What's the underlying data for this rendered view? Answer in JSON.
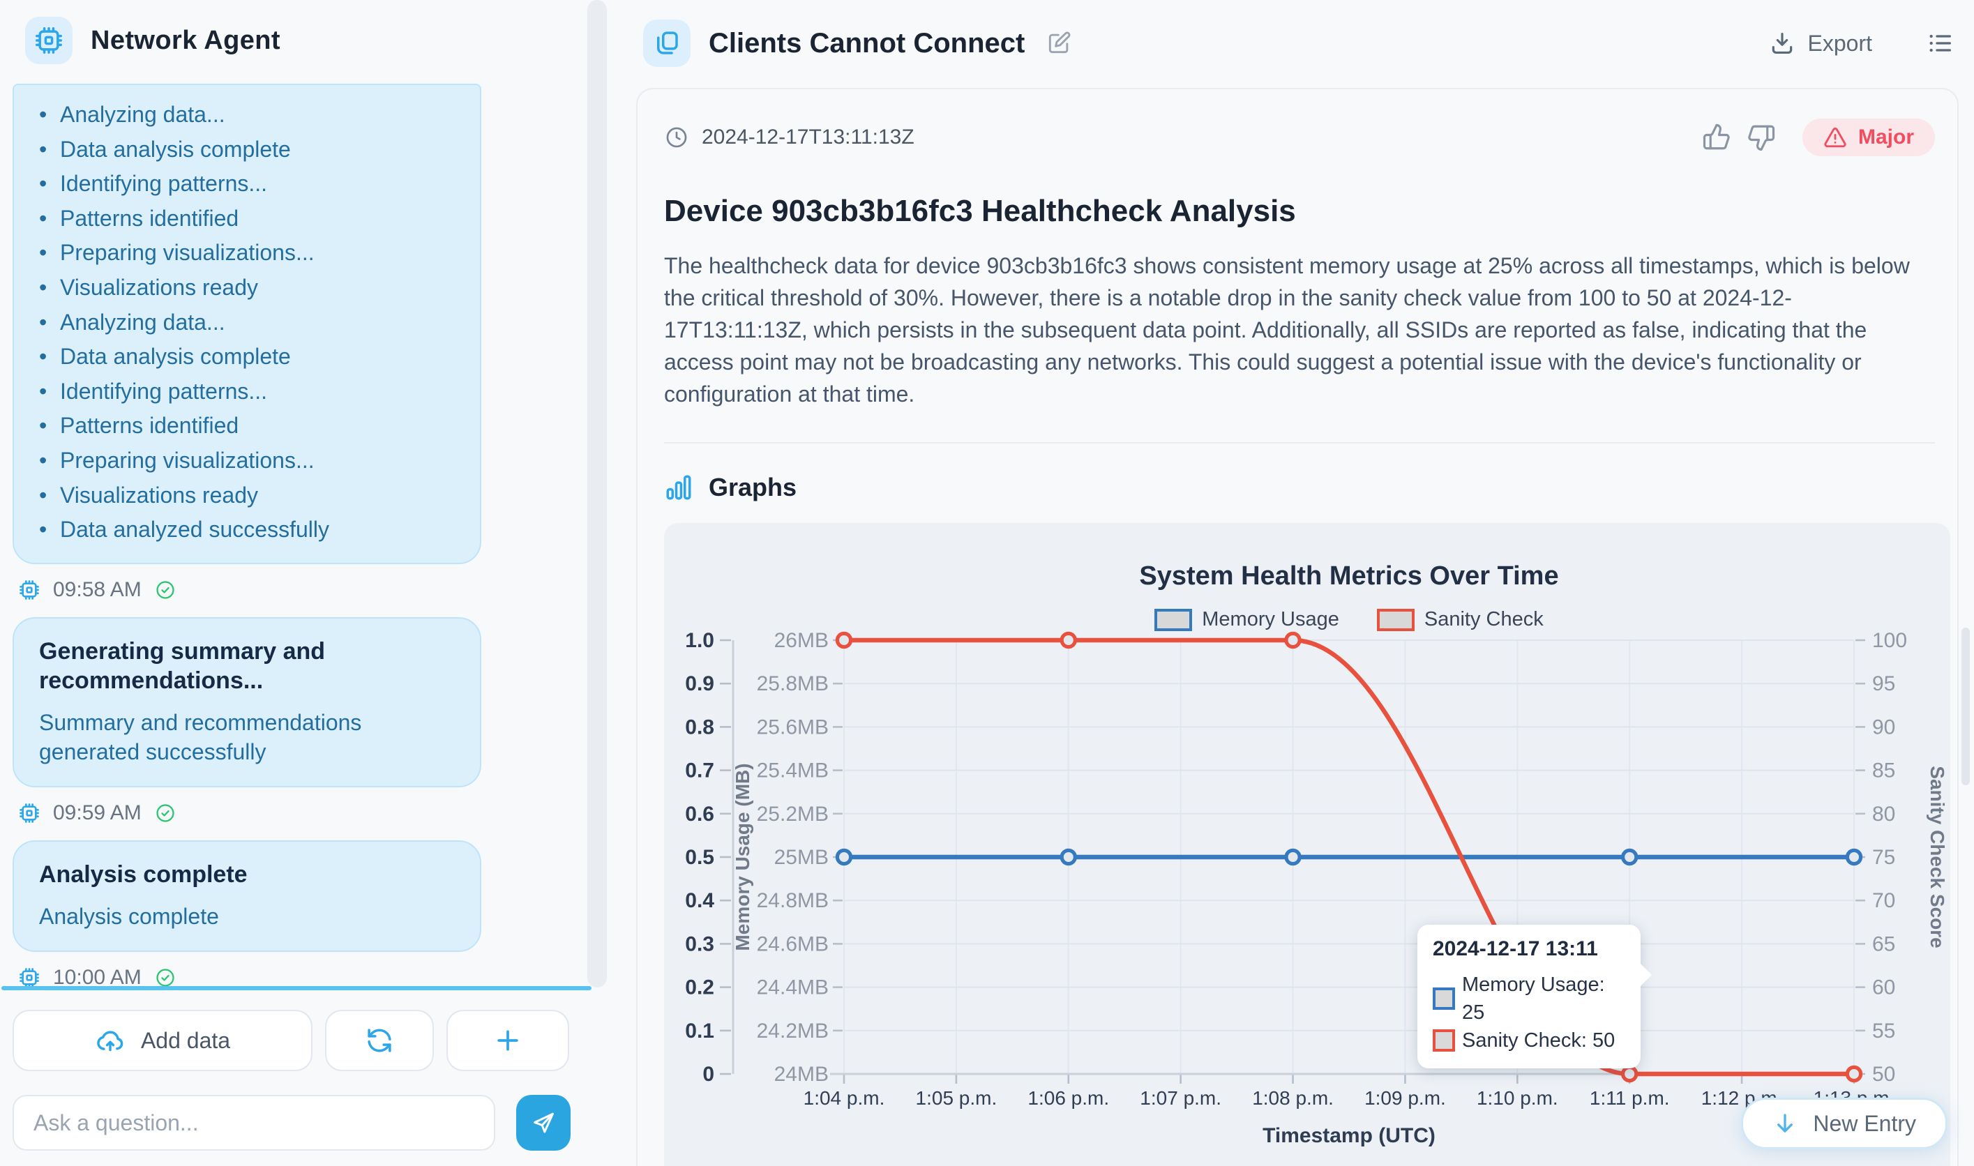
{
  "sidebar": {
    "app_title": "Network Agent",
    "status_steps": [
      "Analyzing data...",
      "Data analysis complete",
      "Identifying patterns...",
      "Patterns identified",
      "Preparing visualizations...",
      "Visualizations ready",
      "Analyzing data...",
      "Data analysis complete",
      "Identifying patterns...",
      "Patterns identified",
      "Preparing visualizations...",
      "Visualizations ready",
      "Data analyzed successfully"
    ],
    "steps_time": "09:58 AM",
    "summary_message": {
      "title": "Generating summary and recommendations...",
      "body": "Summary and recommendations generated successfully",
      "time": "09:59 AM"
    },
    "complete_message": {
      "title": "Analysis complete",
      "body": "Analysis complete",
      "time": "10:00 AM"
    },
    "add_data_label": "Add data",
    "ask_placeholder": "Ask a question..."
  },
  "main": {
    "title": "Clients Cannot Connect",
    "export_label": "Export",
    "new_entry_label": "New Entry",
    "entry": {
      "timestamp": "2024-12-17T13:11:13Z",
      "severity_label": "Major",
      "heading": "Device 903cb3b16fc3 Healthcheck Analysis",
      "body": "The healthcheck data for device 903cb3b16fc3 shows consistent memory usage at 25% across all timestamps, which is below the critical threshold of 30%. However, there is a notable drop in the sanity check value from 100 to 50 at 2024-12-17T13:11:13Z, which persists in the subsequent data point. Additionally, all SSIDs are reported as false, indicating that the access point may not be broadcasting any networks. This could suggest a potential issue with the device's functionality or configuration at that time.",
      "graphs_label": "Graphs"
    }
  },
  "colors": {
    "accent_blue": "#2ba7e9",
    "bubble_bg": "#dcf0fc",
    "severity_red": "#f04e60",
    "check_green": "#2bc46f",
    "line_blue": "#3579be",
    "line_red": "#e8513d"
  },
  "chart_data": {
    "type": "line",
    "title": "System Health Metrics Over Time",
    "xlabel": "Timestamp (UTC)",
    "grid": true,
    "legend_position": "top",
    "x_ticks": [
      "1:04 p.m.",
      "1:05 p.m.",
      "1:06 p.m.",
      "1:07 p.m.",
      "1:08 p.m.",
      "1:09 p.m.",
      "1:10 p.m.",
      "1:11 p.m.",
      "1:12 p.m.",
      "1:13 p.m."
    ],
    "left_axis_normalized": {
      "tick_labels": [
        "1.0",
        "0.9",
        "0.8",
        "0.7",
        "0.6",
        "0.5",
        "0.4",
        "0.3",
        "0.2",
        "0.1",
        "0"
      ]
    },
    "memory_axis": {
      "title": "Memory Usage (MB)",
      "min": 24,
      "max": 26,
      "tick_labels": [
        "26MB",
        "25.8MB",
        "25.6MB",
        "25.4MB",
        "25.2MB",
        "25MB",
        "24.8MB",
        "24.6MB",
        "24.4MB",
        "24.2MB",
        "24MB"
      ]
    },
    "sanity_axis": {
      "title": "Sanity Check Score",
      "min": 50,
      "max": 100,
      "tick_labels": [
        "100",
        "95",
        "90",
        "85",
        "80",
        "75",
        "70",
        "65",
        "60",
        "55",
        "50"
      ]
    },
    "series": [
      {
        "name": "Memory Usage",
        "color": "#3579be",
        "axis": "memory_axis",
        "points_at": [
          "1:04 p.m.",
          "1:06 p.m.",
          "1:08 p.m.",
          "1:11 p.m.",
          "1:13 p.m."
        ],
        "values": [
          25,
          25,
          25,
          25,
          25
        ]
      },
      {
        "name": "Sanity Check",
        "color": "#e8513d",
        "axis": "sanity_axis",
        "points_at": [
          "1:04 p.m.",
          "1:06 p.m.",
          "1:08 p.m.",
          "1:11 p.m.",
          "1:13 p.m."
        ],
        "values": [
          100,
          100,
          100,
          50,
          50
        ]
      }
    ],
    "tooltip": {
      "title": "2024-12-17 13:11",
      "rows": [
        {
          "series": "Memory Usage",
          "text": "Memory Usage: 25",
          "color": "#3579be"
        },
        {
          "series": "Sanity Check",
          "text": "Sanity Check: 50",
          "color": "#e8513d"
        }
      ]
    }
  }
}
